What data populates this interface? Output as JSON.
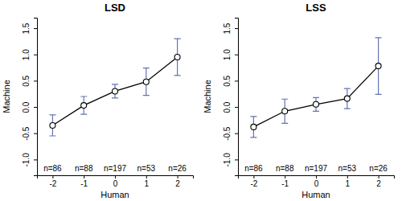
{
  "chart_data": [
    {
      "type": "line",
      "title": "LSD",
      "x_label": "Human",
      "y_label": "Machine",
      "x": [
        -2,
        -1,
        0,
        1,
        2
      ],
      "values": [
        -0.35,
        0.03,
        0.3,
        0.48,
        0.95
      ],
      "errors": [
        0.2,
        0.17,
        0.13,
        0.26,
        0.35
      ],
      "n_labels": [
        "n=86",
        "n=88",
        "n=197",
        "n=53",
        "n=26"
      ],
      "color": "#000000",
      "marker": "circle",
      "xlim": [
        -2.5,
        2.5
      ],
      "xticks": [
        -2,
        -1,
        0,
        1,
        2
      ],
      "ylim": [
        -1.3,
        1.7
      ],
      "yticks": [
        {
          "value": -1,
          "label": "-1.0"
        },
        -0.5,
        {
          "value": 0,
          "label": "0.0"
        },
        0.5,
        {
          "value": 1,
          "label": "1.0"
        },
        1.5
      ]
    },
    {
      "type": "line",
      "title": "LSS",
      "x_label": "Human",
      "y_label": "Machine",
      "x": [
        -2,
        -1,
        0,
        1,
        2
      ],
      "values": [
        -0.38,
        -0.08,
        0.05,
        0.16,
        0.78
      ],
      "errors": [
        0.2,
        0.23,
        0.13,
        0.19,
        0.54
      ],
      "n_labels": [
        "n=86",
        "n=88",
        "n=197",
        "n=53",
        "n=26"
      ],
      "color": "#000000",
      "marker": "circle",
      "xlim": [
        -2.5,
        2.5
      ],
      "xticks": [
        -2,
        -1,
        0,
        1,
        2
      ],
      "ylim": [
        -1.3,
        1.7
      ],
      "yticks": [
        {
          "value": -1,
          "label": "-1.0"
        },
        -0.5,
        {
          "value": 0,
          "label": "0.0"
        },
        0.5,
        {
          "value": 1,
          "label": "1.0"
        },
        1.5
      ]
    }
  ]
}
